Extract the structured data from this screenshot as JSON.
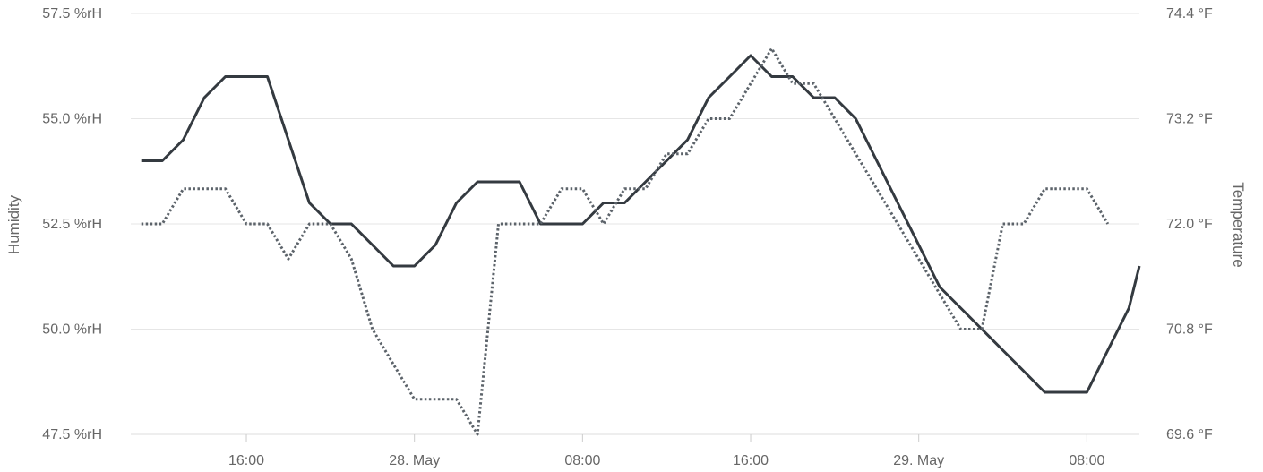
{
  "chart_data": {
    "type": "line",
    "y_axes": {
      "left": {
        "title": "Humidity",
        "unit": "%rH",
        "range": [
          47.5,
          57.5
        ],
        "ticks": [
          47.5,
          50.0,
          52.5,
          55.0,
          57.5
        ],
        "tick_labels": [
          "47.5 %rH",
          "50.0 %rH",
          "52.5 %rH",
          "55.0 %rH",
          "57.5 %rH"
        ]
      },
      "right": {
        "title": "Temperature",
        "unit": "°F",
        "range": [
          69.6,
          74.4
        ],
        "ticks": [
          69.6,
          70.8,
          72.0,
          73.2,
          74.4
        ],
        "tick_labels": [
          "69.6 °F",
          "70.8 °F",
          "72.0 °F",
          "73.2 °F",
          "74.4 °F"
        ]
      }
    },
    "x_axis": {
      "unit": "hours",
      "range": [
        10.5,
        58.5
      ],
      "ticks": [
        16,
        24,
        32,
        40,
        48,
        56
      ],
      "tick_labels": [
        "16:00",
        "28. May",
        "08:00",
        "16:00",
        "29. May",
        "08:00"
      ]
    },
    "grid": true,
    "legend": "none",
    "series": [
      {
        "axis": "left",
        "style": "solid",
        "color": "#343a40",
        "points": [
          [
            11,
            54.0
          ],
          [
            12,
            54.0
          ],
          [
            13,
            54.5
          ],
          [
            14,
            55.5
          ],
          [
            15,
            56.0
          ],
          [
            16,
            56.0
          ],
          [
            17,
            56.0
          ],
          [
            18,
            54.5
          ],
          [
            19,
            53.0
          ],
          [
            20,
            52.5
          ],
          [
            21,
            52.5
          ],
          [
            22,
            52.0
          ],
          [
            23,
            51.5
          ],
          [
            24,
            51.5
          ],
          [
            25,
            52.0
          ],
          [
            26,
            53.0
          ],
          [
            27,
            53.5
          ],
          [
            28,
            53.5
          ],
          [
            29,
            53.5
          ],
          [
            30,
            52.5
          ],
          [
            31,
            52.5
          ],
          [
            32,
            52.5
          ],
          [
            33,
            53.0
          ],
          [
            34,
            53.0
          ],
          [
            35,
            53.5
          ],
          [
            36,
            54.0
          ],
          [
            37,
            54.5
          ],
          [
            38,
            55.5
          ],
          [
            39,
            56.0
          ],
          [
            40,
            56.5
          ],
          [
            41,
            56.0
          ],
          [
            42,
            56.0
          ],
          [
            43,
            55.5
          ],
          [
            44,
            55.5
          ],
          [
            45,
            55.0
          ],
          [
            46,
            54.0
          ],
          [
            47,
            53.0
          ],
          [
            48,
            52.0
          ],
          [
            49,
            51.0
          ],
          [
            50,
            50.5
          ],
          [
            51,
            50.0
          ],
          [
            52,
            49.5
          ],
          [
            53,
            49.0
          ],
          [
            54,
            48.5
          ],
          [
            55,
            48.5
          ],
          [
            56,
            48.5
          ],
          [
            57,
            49.5
          ],
          [
            58,
            50.5
          ],
          [
            58.5,
            51.5
          ]
        ]
      },
      {
        "axis": "right",
        "style": "dotted",
        "color": "#5c636a",
        "points": [
          [
            11,
            72.0
          ],
          [
            12,
            72.0
          ],
          [
            13,
            72.4
          ],
          [
            14,
            72.4
          ],
          [
            15,
            72.4
          ],
          [
            16,
            72.0
          ],
          [
            17,
            72.0
          ],
          [
            18,
            71.6
          ],
          [
            19,
            72.0
          ],
          [
            20,
            72.0
          ],
          [
            21,
            71.6
          ],
          [
            22,
            70.8
          ],
          [
            23,
            70.4
          ],
          [
            24,
            70.0
          ],
          [
            25,
            70.0
          ],
          [
            26,
            70.0
          ],
          [
            27,
            69.6
          ],
          [
            28,
            72.0
          ],
          [
            29,
            72.0
          ],
          [
            30,
            72.0
          ],
          [
            31,
            72.4
          ],
          [
            32,
            72.4
          ],
          [
            33,
            72.0
          ],
          [
            34,
            72.4
          ],
          [
            35,
            72.4
          ],
          [
            36,
            72.8
          ],
          [
            37,
            72.8
          ],
          [
            38,
            73.2
          ],
          [
            39,
            73.2
          ],
          [
            40,
            73.6
          ],
          [
            41,
            74.0
          ],
          [
            42,
            73.6
          ],
          [
            43,
            73.6
          ],
          [
            44,
            73.2
          ],
          [
            45,
            72.8
          ],
          [
            46,
            72.4
          ],
          [
            47,
            72.0
          ],
          [
            48,
            71.6
          ],
          [
            49,
            71.2
          ],
          [
            50,
            70.8
          ],
          [
            51,
            70.8
          ],
          [
            52,
            72.0
          ],
          [
            53,
            72.0
          ],
          [
            54,
            72.4
          ],
          [
            55,
            72.4
          ],
          [
            56,
            72.4
          ],
          [
            57,
            72.0
          ]
        ]
      }
    ]
  }
}
